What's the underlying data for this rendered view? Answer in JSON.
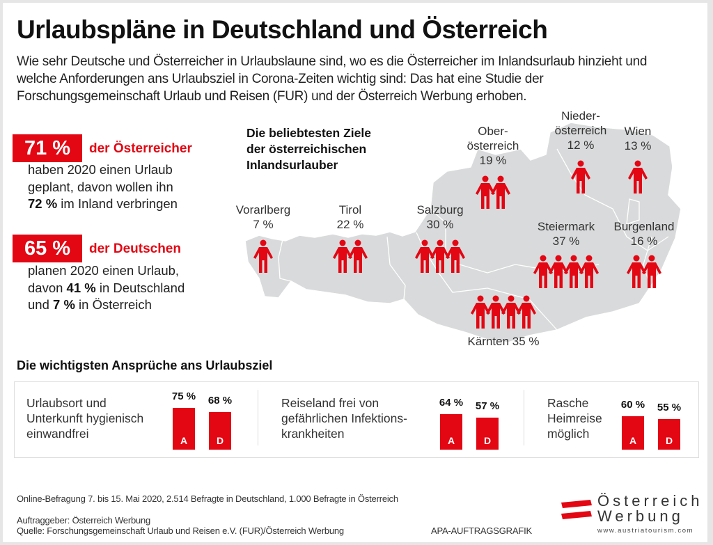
{
  "title": "Urlaubspläne in Deutschland und Österreich",
  "intro": "Wie sehr Deutsche und Österreicher in Urlaubslaune sind, wo es die Österreicher im Inlandsurlaub hinzieht und welche Anforderungen ans Urlaubsziel in Corona-Zeiten wichtig sind: Das hat eine Studie der Forschungsgemeinschaft Urlaub und Reisen (FUR) und der Österreich Werbung erhoben.",
  "stats": [
    {
      "value": "71 %",
      "label": "der Österreicher",
      "line1": "haben 2020 einen Urlaub",
      "line2": "geplant, davon wollen ihn",
      "line3_bold": "72 %",
      "line3_rest": " im Inland verbringen"
    },
    {
      "value": "65 %",
      "label": "der Deutschen",
      "line1": "planen 2020 einen Urlaub,",
      "line2_pre": "davon ",
      "line2_bold": "41 %",
      "line2_rest": " in Deutschland",
      "line3_pre": "und ",
      "line3_bold": "7 %",
      "line3_rest": " in Österreich"
    }
  ],
  "map_title": [
    "Die beliebtesten Ziele",
    "der österreichischen",
    "Inlandsurlauber"
  ],
  "colors": {
    "accent": "#e30613",
    "map": "#d9dadb",
    "text": "#1a1a1a"
  },
  "chart_data": [
    {
      "type": "pictogram-map",
      "title": "Die beliebtesten Ziele der österreichischen Inlandsurlauber",
      "unit": "%",
      "categories": [
        "Vorarlberg",
        "Tirol",
        "Salzburg",
        "Oberösterreich",
        "Niederösterreich",
        "Wien",
        "Steiermark",
        "Burgenland",
        "Kärnten"
      ],
      "values": [
        7,
        22,
        30,
        19,
        12,
        13,
        37,
        16,
        35
      ],
      "icons": [
        1,
        2,
        3,
        2,
        1,
        1,
        4,
        2,
        4
      ],
      "labels": [
        {
          "name": [
            "Vorarlberg"
          ],
          "pct": "7 %"
        },
        {
          "name": [
            "Tirol"
          ],
          "pct": "22 %"
        },
        {
          "name": [
            "Salzburg"
          ],
          "pct": "30 %"
        },
        {
          "name": [
            "Ober-",
            "österreich"
          ],
          "pct": "19 %"
        },
        {
          "name": [
            "Nieder-",
            "österreich"
          ],
          "pct": "12 %"
        },
        {
          "name": [
            "Wien"
          ],
          "pct": "13 %"
        },
        {
          "name": [
            "Steiermark"
          ],
          "pct": "37 %"
        },
        {
          "name": [
            "Burgenland"
          ],
          "pct": "16 %"
        },
        {
          "name": [
            "Kärnten 35 %"
          ],
          "pct": ""
        }
      ]
    },
    {
      "type": "bar",
      "title": "Die wichtigsten Ansprüche ans Urlaubsziel",
      "categories": [
        "Urlaubsort und Unterkunft hygienisch einwandfrei",
        "Reiseland frei von gefährlichen Infektionskrankheiten",
        "Rasche Heimreise möglich"
      ],
      "category_lines": [
        [
          "Urlaubsort und",
          "Unterkunft hygienisch",
          "einwandfrei"
        ],
        [
          "Reiseland frei von",
          "gefährlichen Infektions-",
          "krankheiten"
        ],
        [
          "Rasche",
          "Heimreise",
          "möglich"
        ]
      ],
      "series": [
        {
          "name": "A",
          "values": [
            75,
            64,
            60
          ]
        },
        {
          "name": "D",
          "values": [
            68,
            57,
            55
          ]
        }
      ],
      "value_labels": [
        [
          "75 %",
          "68 %"
        ],
        [
          "64 %",
          "57 %"
        ],
        [
          "60 %",
          "55 %"
        ]
      ],
      "ylim": [
        0,
        100
      ]
    }
  ],
  "section_title": "Die wichtigsten Ansprüche ans Urlaubsziel",
  "footer": {
    "survey": "Online-Befragung 7. bis 15. Mai 2020, 2.514 Befragte in Deutschland, 1.000 Befragte in Österreich",
    "client": "Auftraggeber: Österreich Werbung",
    "source": "Quelle: Forschungsgemeinschaft Urlaub und Reisen e.V. (FUR)/Österreich Werbung",
    "credit": "APA-AUFTRAGSGRAFIK"
  },
  "logo": {
    "line1": "Österreich",
    "line2": "Werbung",
    "url": "www.austriatourism.com"
  }
}
